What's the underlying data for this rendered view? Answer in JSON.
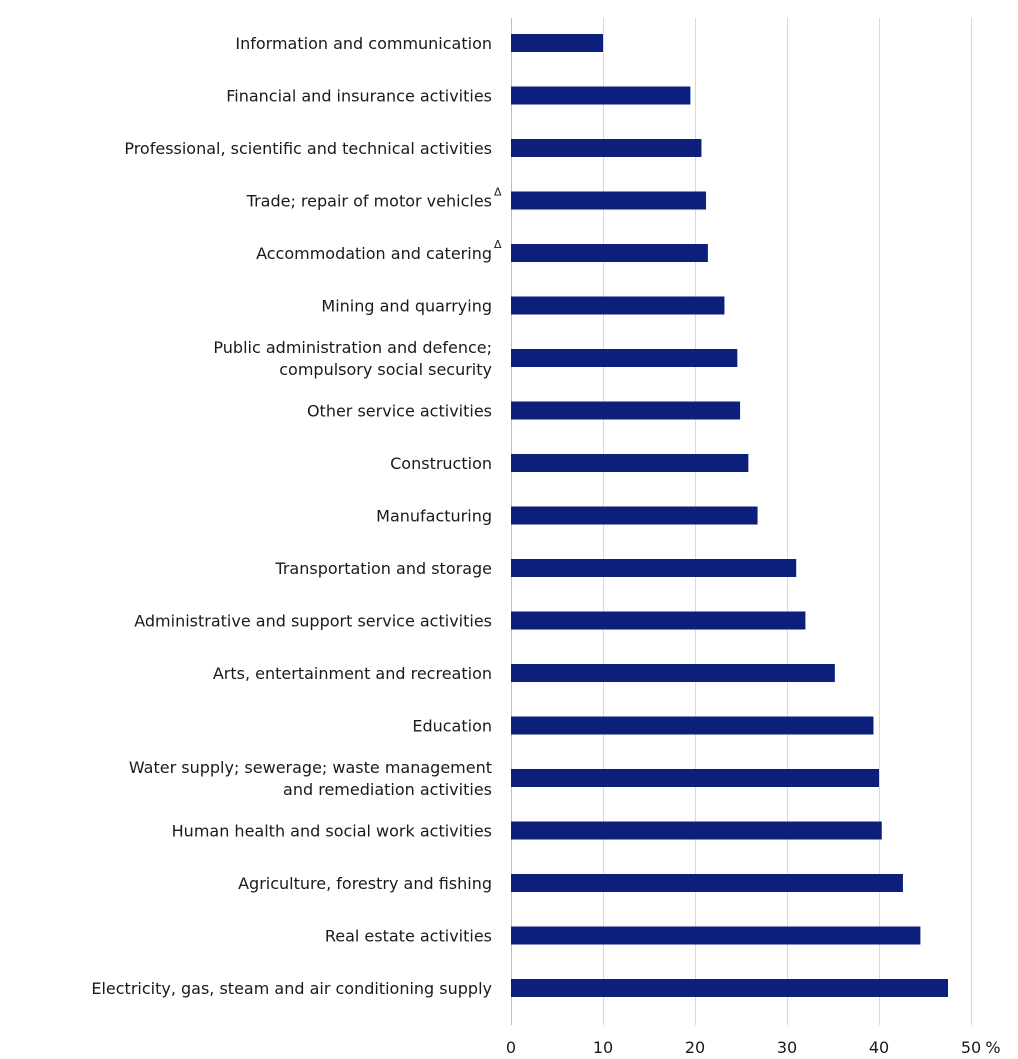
{
  "chart_data": {
    "type": "bar",
    "orientation": "horizontal",
    "categories": [
      "Information and communication",
      "Financial and insurance activities",
      "Professional, scientific and technical activities",
      "Trade; repair of motor vehicles",
      "Accommodation and catering",
      "Mining and quarrying",
      "Public administration and defence; compulsory social security",
      "Other service activities",
      "Construction",
      "Manufacturing",
      "Transportation and storage",
      "Administrative and support service activities",
      "Arts, entertainment and recreation",
      "Education",
      "Water supply; sewerage; waste management and remediation activities",
      "Human health and social work activities",
      "Agriculture, forestry and fishing",
      "Real estate activities",
      "Electricity, gas, steam and air conditioning supply"
    ],
    "category_lines": [
      [
        "Information and communication"
      ],
      [
        "Financial and insurance activities"
      ],
      [
        "Professional, scientific and technical activities"
      ],
      [
        "Trade; repair of motor vehicles"
      ],
      [
        "Accommodation and catering"
      ],
      [
        "Mining and quarrying"
      ],
      [
        "Public administration and defence;",
        "compulsory social security"
      ],
      [
        "Other service activities"
      ],
      [
        "Construction"
      ],
      [
        "Manufacturing"
      ],
      [
        "Transportation and storage"
      ],
      [
        "Administrative and support service activities"
      ],
      [
        "Arts, entertainment and recreation"
      ],
      [
        "Education"
      ],
      [
        "Water supply; sewerage; waste management",
        "and remediation activities"
      ],
      [
        "Human health and social work activities"
      ],
      [
        "Agriculture, forestry and fishing"
      ],
      [
        "Real estate activities"
      ],
      [
        "Electricity, gas, steam and air conditioning supply"
      ]
    ],
    "footnote_marks": [
      "",
      "",
      "",
      "Δ",
      "Δ",
      "",
      "",
      "",
      "",
      "",
      "",
      "",
      "",
      "",
      "",
      "",
      "",
      "",
      ""
    ],
    "values": [
      10.0,
      19.5,
      20.7,
      21.2,
      21.4,
      23.2,
      24.6,
      24.9,
      25.8,
      26.8,
      31.0,
      32.0,
      35.2,
      39.4,
      40.0,
      40.3,
      42.6,
      44.5,
      47.5
    ],
    "xlim": [
      0,
      50
    ],
    "xticks": [
      0,
      10,
      20,
      30,
      40,
      50
    ],
    "xtick_labels": [
      "0",
      "10",
      "20",
      "30",
      "40",
      "50"
    ],
    "unit_label": "%",
    "grid": true,
    "bar_color": "#0c1f7a",
    "title": "",
    "xlabel": "",
    "ylabel": ""
  }
}
